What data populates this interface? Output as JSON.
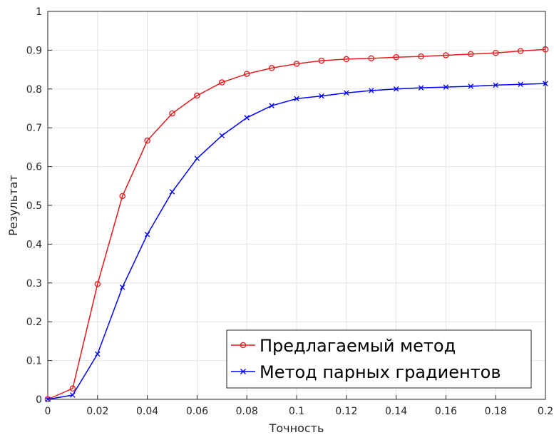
{
  "chart_data": {
    "type": "line",
    "xlabel": "Точность",
    "ylabel": "Результат",
    "xlim": [
      0,
      0.2
    ],
    "ylim": [
      0,
      1
    ],
    "x": [
      0,
      0.01,
      0.02,
      0.03,
      0.04,
      0.05,
      0.06,
      0.07,
      0.08,
      0.09,
      0.1,
      0.11,
      0.12,
      0.13,
      0.14,
      0.15,
      0.16,
      0.17,
      0.18,
      0.19,
      0.2
    ],
    "xticks": [
      "0",
      "0.02",
      "0.04",
      "0.06",
      "0.08",
      "0.1",
      "0.12",
      "0.14",
      "0.16",
      "0.18",
      "0.2"
    ],
    "yticks": [
      "0",
      "0.1",
      "0.2",
      "0.3",
      "0.4",
      "0.5",
      "0.6",
      "0.7",
      "0.8",
      "0.9",
      "1"
    ],
    "grid": true,
    "legend_position": "bottom-right",
    "series": [
      {
        "name": "Предлагаемый метод",
        "color": "#e41a1c",
        "marker": "circle",
        "values": [
          0,
          0.028,
          0.297,
          0.524,
          0.667,
          0.737,
          0.783,
          0.817,
          0.839,
          0.854,
          0.865,
          0.873,
          0.877,
          0.879,
          0.882,
          0.884,
          0.887,
          0.89,
          0.893,
          0.898,
          0.902
        ]
      },
      {
        "name": "Метод парных градиентов",
        "color": "#0000ff",
        "marker": "x",
        "values": [
          0,
          0.011,
          0.117,
          0.289,
          0.425,
          0.535,
          0.621,
          0.68,
          0.726,
          0.757,
          0.775,
          0.782,
          0.79,
          0.796,
          0.8,
          0.803,
          0.805,
          0.807,
          0.81,
          0.812,
          0.814
        ]
      }
    ]
  }
}
